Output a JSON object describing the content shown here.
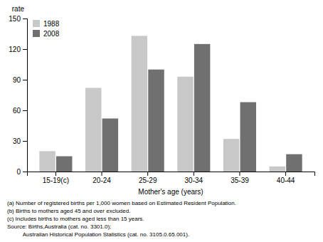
{
  "chart_data": {
    "type": "bar",
    "categories": [
      "15-19(c)",
      "20-24",
      "25-29",
      "30-34",
      "35-39",
      "40-44"
    ],
    "series": [
      {
        "name": "1988",
        "color": "#c8c8c8",
        "values": [
          20,
          82,
          133,
          93,
          32,
          5
        ]
      },
      {
        "name": "2008",
        "color": "#707070",
        "values": [
          15,
          52,
          100,
          125,
          68,
          17
        ]
      }
    ],
    "xlabel": "Mother's age (years)",
    "ylabel": "rate",
    "ylim": [
      0,
      150
    ],
    "yticks": [
      0,
      30,
      60,
      90,
      120,
      150
    ],
    "legend": "upper left",
    "grid": false,
    "annotations": [
      "(a) Number of registered births per 1,000 women based on Estimated Resident Population.",
      "(b) Births to mothers aged 45 and over excluded.",
      "(c) Includes births to mothers aged less than 15 years.",
      "Source: Births,Australia (cat. no. 3301.0);",
      "          Australian Historical Population Statistics (cat. no. 3105.0.65.001)."
    ]
  }
}
